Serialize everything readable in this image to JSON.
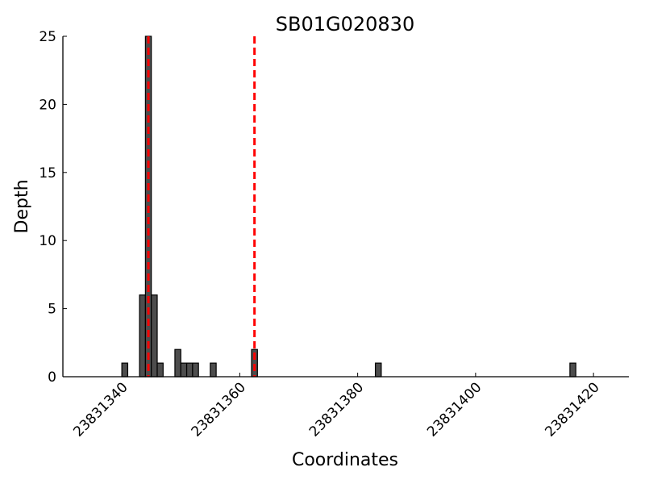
{
  "chart_data": {
    "type": "bar",
    "title": "SB01G020830",
    "xlabel": "Coordinates",
    "ylabel": "Depth",
    "xlim": [
      23831330,
      23831426
    ],
    "ylim": [
      0,
      25
    ],
    "xticks": [
      23831340,
      23831360,
      23831380,
      23831400,
      23831420
    ],
    "yticks": [
      0,
      5,
      10,
      15,
      20,
      25
    ],
    "bar_color": "#4d4d4d",
    "bar_edge_color": "#000000",
    "bars": [
      {
        "x": 23831340,
        "value": 1
      },
      {
        "x": 23831343,
        "value": 6
      },
      {
        "x": 23831344,
        "value": 25
      },
      {
        "x": 23831345,
        "value": 6
      },
      {
        "x": 23831346,
        "value": 1
      },
      {
        "x": 23831349,
        "value": 2
      },
      {
        "x": 23831350,
        "value": 1
      },
      {
        "x": 23831351,
        "value": 1
      },
      {
        "x": 23831352,
        "value": 1
      },
      {
        "x": 23831355,
        "value": 1
      },
      {
        "x": 23831362,
        "value": 2
      },
      {
        "x": 23831383,
        "value": 1
      },
      {
        "x": 23831416,
        "value": 1
      }
    ],
    "vlines": [
      {
        "x": 23831344.5,
        "color": "#ff0000",
        "style": "dashed"
      },
      {
        "x": 23831362.5,
        "color": "#ff0000",
        "style": "dashed"
      }
    ],
    "grid": false,
    "legend": "none"
  }
}
